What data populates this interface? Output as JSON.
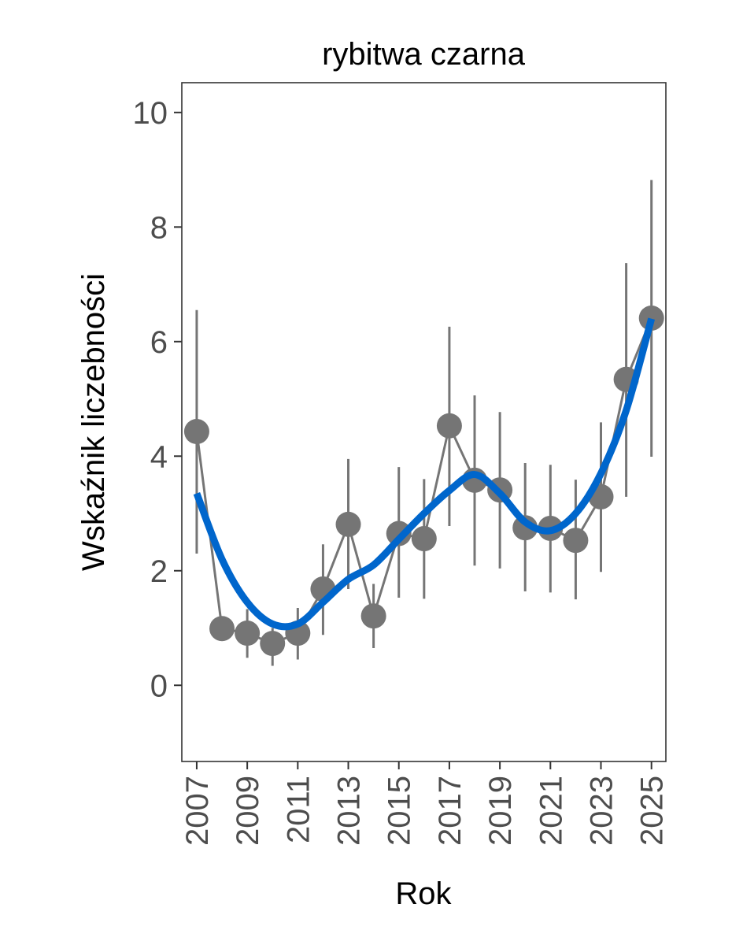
{
  "chart_data": {
    "type": "line",
    "title": "rybitwa czarna",
    "xlabel": "Rok",
    "ylabel": "Wskaźnik liczebności",
    "xlim": [
      2006.41,
      2025.57
    ],
    "ylim": [
      -1.33,
      10.52
    ],
    "x_ticks": [
      2007,
      2009,
      2011,
      2013,
      2015,
      2017,
      2019,
      2021,
      2023,
      2025
    ],
    "x_tick_labels": [
      "2007",
      "2009",
      "2011",
      "2013",
      "2015",
      "2017",
      "2019",
      "2021",
      "2023",
      "2025"
    ],
    "y_ticks": [
      0,
      2,
      4,
      6,
      8,
      10
    ],
    "y_tick_labels": [
      "0",
      "2",
      "4",
      "6",
      "8",
      "10"
    ],
    "grid": false,
    "colors": {
      "points": "#757575",
      "trend": "#0066cc",
      "axis": "#333333"
    },
    "series": [
      {
        "name": "index",
        "x": [
          2007,
          2008,
          2009,
          2010,
          2011,
          2012,
          2013,
          2014,
          2015,
          2016,
          2017,
          2018,
          2019,
          2020,
          2021,
          2022,
          2023,
          2024,
          2025
        ],
        "values": [
          4.43,
          0.99,
          0.91,
          0.73,
          0.91,
          1.68,
          2.81,
          1.21,
          2.65,
          2.56,
          4.53,
          3.58,
          3.41,
          2.75,
          2.74,
          2.53,
          3.29,
          5.34,
          6.41
        ],
        "lower": [
          2.3,
          0.85,
          0.48,
          0.34,
          0.45,
          0.88,
          1.68,
          0.65,
          1.53,
          1.51,
          2.78,
          2.09,
          2.04,
          1.64,
          1.62,
          1.5,
          1.98,
          3.29,
          3.99
        ],
        "upper": [
          6.55,
          1.12,
          1.33,
          1.0,
          1.35,
          2.46,
          3.95,
          1.77,
          3.81,
          3.6,
          6.26,
          5.06,
          4.77,
          3.88,
          3.85,
          3.59,
          4.59,
          7.37,
          8.82
        ]
      },
      {
        "name": "trend",
        "x": [
          2007,
          2008,
          2009,
          2010,
          2011,
          2012,
          2013,
          2014,
          2015,
          2016,
          2017,
          2018,
          2019,
          2020,
          2021,
          2022,
          2023,
          2024,
          2025
        ],
        "values": [
          3.35,
          2.2,
          1.45,
          1.07,
          1.07,
          1.45,
          1.85,
          2.1,
          2.55,
          3.0,
          3.4,
          3.68,
          3.35,
          2.85,
          2.7,
          3.0,
          3.7,
          4.8,
          6.4
        ]
      }
    ]
  }
}
